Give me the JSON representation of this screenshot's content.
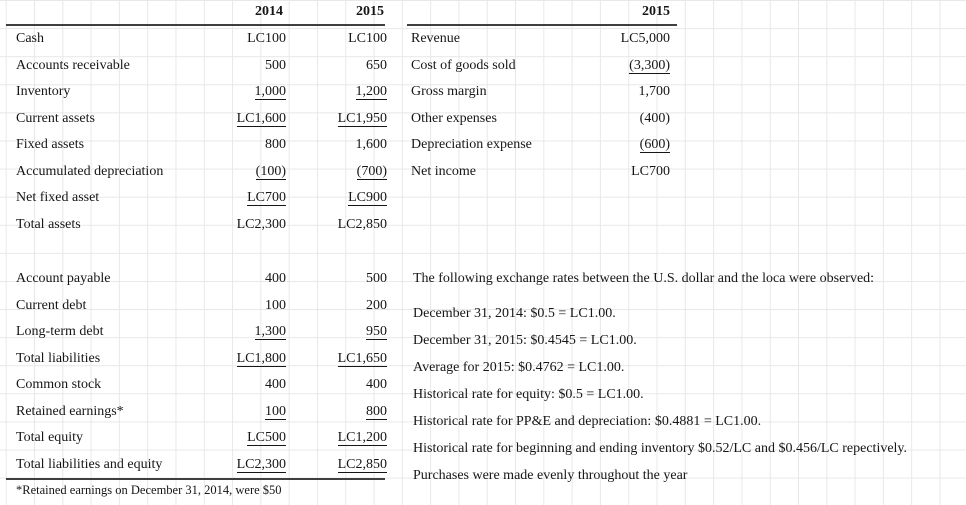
{
  "balance_sheet": {
    "col_headers": [
      "2014",
      "2015"
    ],
    "asset_rows": [
      {
        "label": "Cash",
        "v2014": "LC100",
        "v2015": "LC100"
      },
      {
        "label": "Accounts receivable",
        "v2014": "500",
        "v2015": "650"
      },
      {
        "label": "Inventory",
        "v2014": "1,000",
        "v2015": "1,200"
      },
      {
        "label": "Current assets",
        "v2014": "LC1,600",
        "v2015": "LC1,950"
      },
      {
        "label": "Fixed assets",
        "v2014": "800",
        "v2015": "1,600"
      },
      {
        "label": "Accumulated depreciation",
        "v2014": "(100)",
        "v2015": "(700)"
      },
      {
        "label": "Net fixed asset",
        "v2014": "LC700",
        "v2015": "LC900"
      },
      {
        "label": "Total assets",
        "v2014": "LC2,300",
        "v2015": "LC2,850"
      }
    ],
    "liability_rows": [
      {
        "label": "Account payable",
        "v2014": "400",
        "v2015": "500"
      },
      {
        "label": "Current debt",
        "v2014": "100",
        "v2015": "200"
      },
      {
        "label": "Long-term debt",
        "v2014": "1,300",
        "v2015": "950"
      },
      {
        "label": "Total liabilities",
        "v2014": "LC1,800",
        "v2015": "LC1,650"
      },
      {
        "label": "Common stock",
        "v2014": "400",
        "v2015": "400"
      },
      {
        "label": "Retained earnings*",
        "v2014": "100",
        "v2015": "800"
      },
      {
        "label": "Total equity",
        "v2014": "LC500",
        "v2015": "LC1,200"
      },
      {
        "label": "Total liabilities and equity",
        "v2014": "LC2,300",
        "v2015": "LC2,850"
      }
    ],
    "footnote": "*Retained earnings on December 31, 2014, were $50"
  },
  "income_statement": {
    "col_header": "2015",
    "rows": [
      {
        "label": "Revenue",
        "value": "LC5,000"
      },
      {
        "label": "Cost of goods sold",
        "value": "(3,300)"
      },
      {
        "label": "Gross margin",
        "value": "1,700"
      },
      {
        "label": "Other expenses",
        "value": "(400)"
      },
      {
        "label": "Depreciation expense",
        "value": "(600)"
      },
      {
        "label": "Net income",
        "value": "LC700"
      }
    ]
  },
  "notes": {
    "intro": "The following exchange rates between the U.S. dollar and the loca were observed:",
    "lines": [
      "December 31, 2014: $0.5 = LC1.00.",
      "December 31, 2015: $0.4545 = LC1.00.",
      "Average for 2015: $0.4762 = LC1.00.",
      "Historical rate for equity: $0.5 = LC1.00.",
      "Historical rate for PP&E and depreciation: $0.4881 = LC1.00.",
      "Historical rate for beginning and ending inventory $0.52/LC and $0.456/LC repectively.",
      "Purchases were made evenly throughout the year"
    ]
  },
  "colors": {
    "grid_line": "#e8e8e8",
    "rule": "#3f3f3f",
    "text": "#161616"
  }
}
